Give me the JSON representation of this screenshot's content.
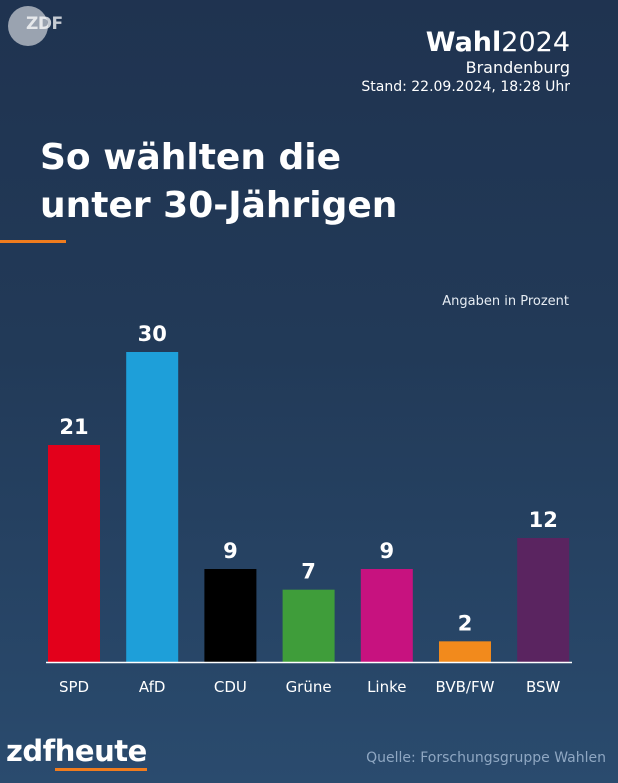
{
  "header": {
    "logo": "ZDF",
    "wahl_bold": "Wahl",
    "wahl_year": "2024",
    "region": "Brandenburg",
    "stand": "Stand: 22.09.2024, 18:28 Uhr"
  },
  "chart_data": {
    "type": "bar",
    "title": "So wählten die unter 30-Jährigen",
    "title_lines": [
      "So wählten die",
      "unter 30-Jährigen"
    ],
    "unit_note": "Angaben in Prozent",
    "categories": [
      "SPD",
      "AfD",
      "CDU",
      "Grüne",
      "Linke",
      "BVB/FW",
      "BSW"
    ],
    "values": [
      21,
      30,
      9,
      7,
      9,
      2,
      12
    ],
    "colors": [
      "#e3001b",
      "#1e9fd9",
      "#000000",
      "#3f9d3a",
      "#c7127f",
      "#f28a1c",
      "#5a2460"
    ],
    "ylim": [
      0,
      30
    ],
    "xlabel": "",
    "ylabel": ""
  },
  "footer": {
    "brand_zdf": "zdf",
    "brand_heute": "heute",
    "source": "Quelle: Forschungsgruppe Wahlen"
  }
}
